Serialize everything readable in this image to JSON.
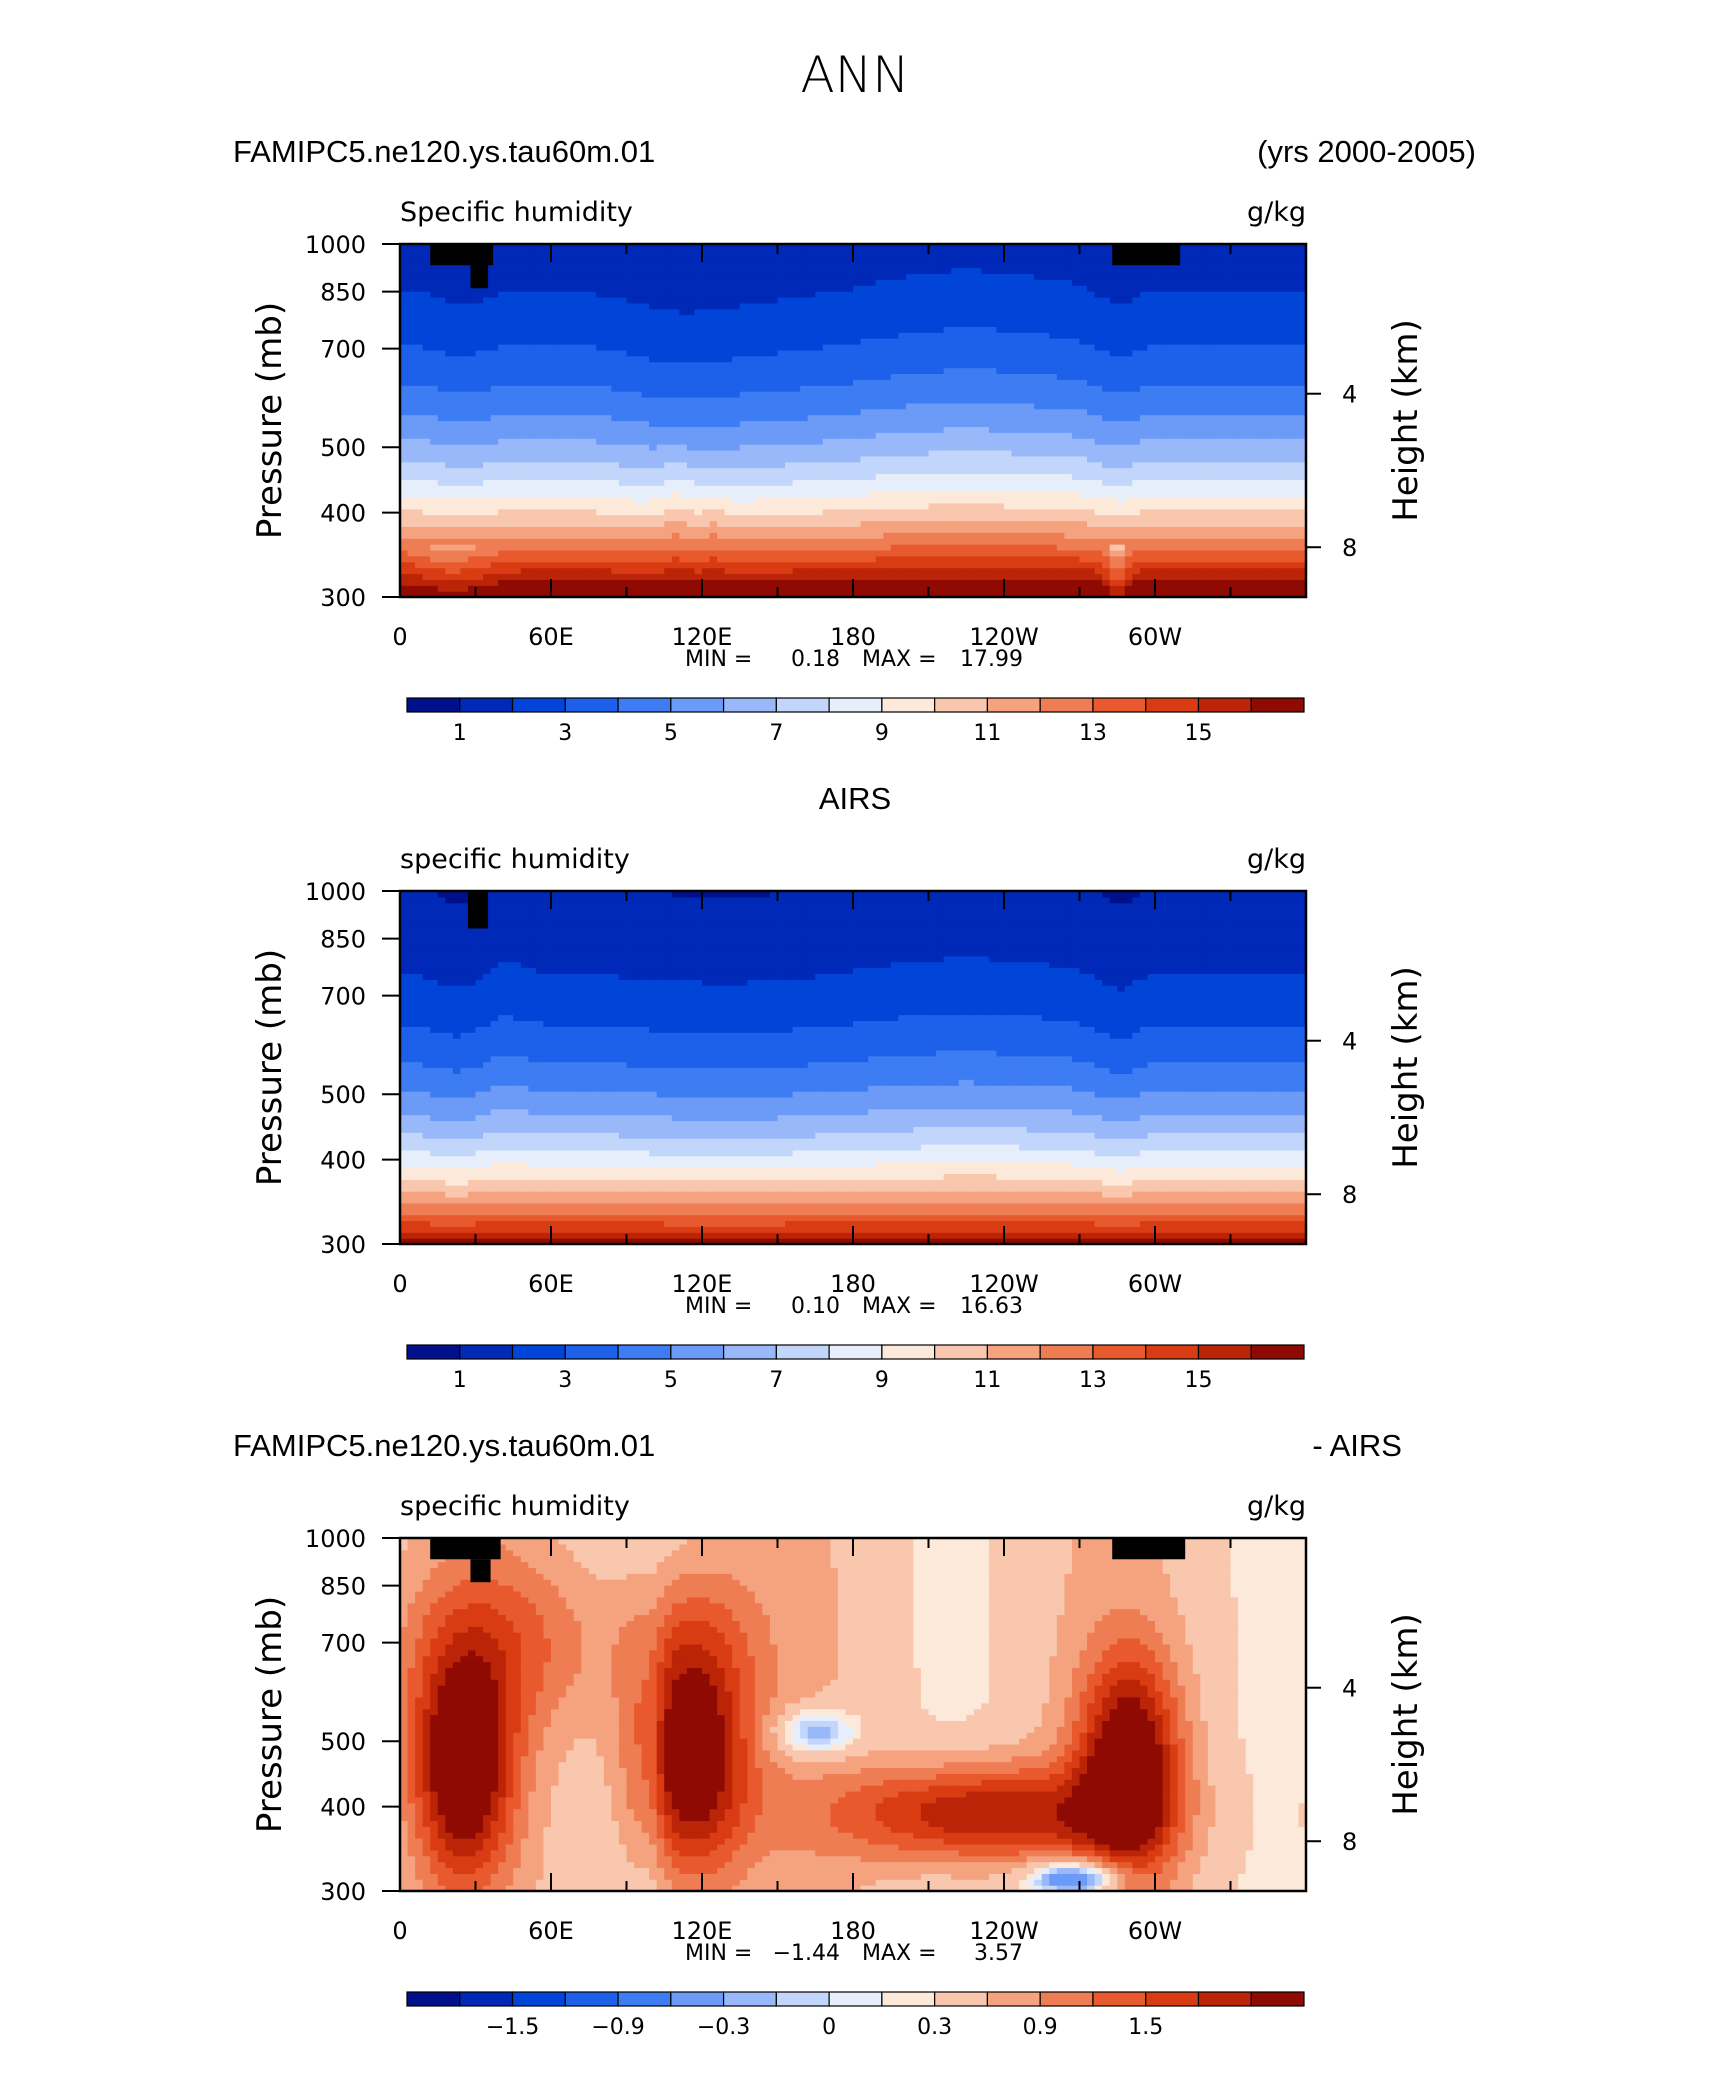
{
  "figure": {
    "season": "ANN"
  },
  "colorbars": {
    "humidity": {
      "colors": [
        "#00108a",
        "#0029b8",
        "#0044d8",
        "#1d60ea",
        "#3d7cf2",
        "#6b9af7",
        "#98b8f9",
        "#c2d6fb",
        "#e6eefc",
        "#fde9d9",
        "#f9c7ad",
        "#f5a37f",
        "#ef7d53",
        "#e85a2e",
        "#d93c12",
        "#bb2406",
        "#8e0a02"
      ],
      "labels": [
        "1",
        "3",
        "5",
        "7",
        "9",
        "11",
        "13",
        "15"
      ]
    },
    "difference": {
      "colors": [
        "#00108a",
        "#0029b8",
        "#0044d8",
        "#1d60ea",
        "#3d7cf2",
        "#6b9af7",
        "#98b8f9",
        "#c2d6fb",
        "#e6eefc",
        "#fde9d9",
        "#f9c7ad",
        "#f5a37f",
        "#ef7d53",
        "#e85a2e",
        "#d93c12",
        "#bb2406",
        "#8e0a02"
      ],
      "labels": [
        "−1.5",
        "−0.9",
        "−0.3",
        "0",
        "0.3",
        "0.9",
        "1.5"
      ]
    }
  },
  "chart_data": [
    {
      "type": "heatmap",
      "title_left": "FAMIPC5.ne120.ys.tau60m.01",
      "title_right": "(yrs 2000-2005)",
      "field_label": "Specific  humidity",
      "units": "g/kg",
      "ylabel": "Pressure  (mb)",
      "y2label": "Height  (km)",
      "x_ticks": [
        "0",
        "60E",
        "120E",
        "180",
        "120W",
        "60W"
      ],
      "y_ticks": [
        "300",
        "400",
        "500",
        "700",
        "850",
        "1000"
      ],
      "y2_ticks": [
        "8",
        "4"
      ],
      "min_label": "MIN =",
      "min_value": "0.18",
      "max_label": "MAX =",
      "max_value": "17.99",
      "xlim": [
        0,
        360
      ],
      "ylim": [
        1000,
        300
      ],
      "colorbar": "humidity"
    },
    {
      "type": "heatmap",
      "title_center": "AIRS",
      "field_label": "specific  humidity",
      "units": "g/kg",
      "ylabel": "Pressure  (mb)",
      "y2label": "Height  (km)",
      "x_ticks": [
        "0",
        "60E",
        "120E",
        "180",
        "120W",
        "60W"
      ],
      "y_ticks": [
        "300",
        "400",
        "500",
        "700",
        "850",
        "1000"
      ],
      "y2_ticks": [
        "8",
        "4"
      ],
      "min_label": "MIN =",
      "min_value": "0.10",
      "max_label": "MAX =",
      "max_value": "16.63",
      "xlim": [
        0,
        360
      ],
      "ylim": [
        1000,
        300
      ],
      "colorbar": "humidity"
    },
    {
      "type": "heatmap",
      "title_left": "FAMIPC5.ne120.ys.tau60m.01",
      "title_right": "- AIRS",
      "field_label": "specific  humidity",
      "units": "g/kg",
      "ylabel": "Pressure  (mb)",
      "y2label": "Height  (km)",
      "x_ticks": [
        "0",
        "60E",
        "120E",
        "180",
        "120W",
        "60W"
      ],
      "y_ticks": [
        "300",
        "400",
        "500",
        "700",
        "850",
        "1000"
      ],
      "y2_ticks": [
        "8",
        "4"
      ],
      "min_label": "MIN =",
      "min_value": "−1.44",
      "max_label": "MAX =",
      "max_value": "3.57",
      "xlim": [
        0,
        360
      ],
      "ylim": [
        1000,
        300
      ],
      "colorbar": "difference"
    }
  ]
}
